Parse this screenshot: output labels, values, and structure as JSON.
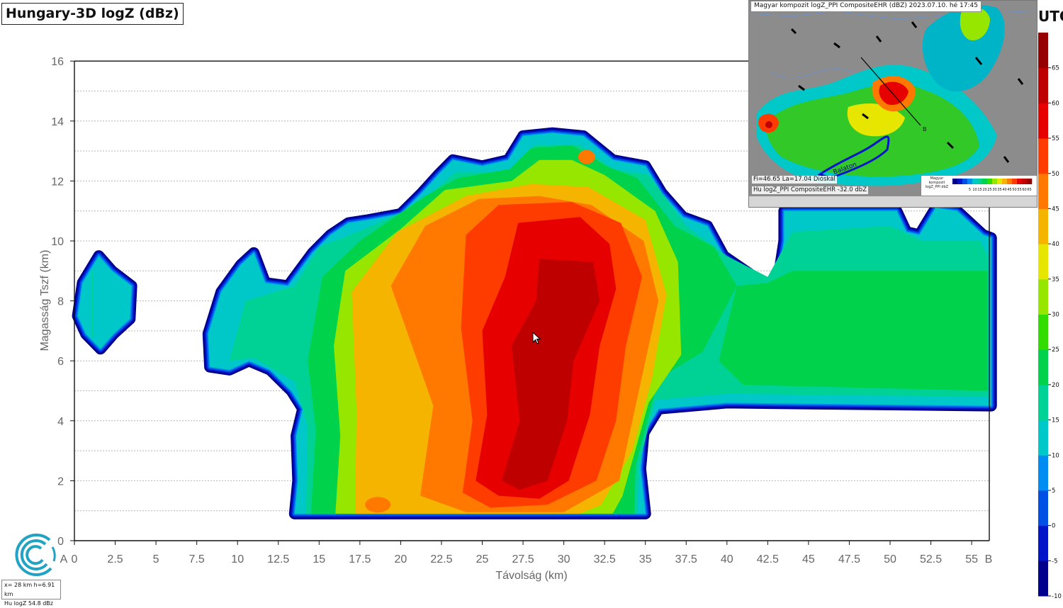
{
  "title": "Hungary-3D logZ (dBz)",
  "utc_label": "UTC",
  "chart_data": {
    "type": "heatmap",
    "xlabel": "Távolság (km)",
    "ylabel": "Magasság Tszf (km)",
    "xlim": [
      0,
      56
    ],
    "ylim": [
      0,
      16
    ],
    "x_ticks": [
      "0",
      "2.5",
      "5",
      "7.5",
      "10",
      "12.5",
      "15",
      "17.5",
      "20",
      "22.5",
      "25",
      "27.5",
      "30",
      "32.5",
      "35",
      "37.5",
      "40",
      "42.5",
      "45",
      "47.5",
      "50",
      "52.5",
      "55"
    ],
    "x_tick_values": [
      0,
      2.5,
      5,
      7.5,
      10,
      12.5,
      15,
      17.5,
      20,
      22.5,
      25,
      27.5,
      30,
      32.5,
      35,
      37.5,
      40,
      42.5,
      45,
      47.5,
      50,
      52.5,
      55
    ],
    "y_ticks": [
      "0",
      "2",
      "4",
      "6",
      "8",
      "10",
      "12",
      "14",
      "16"
    ],
    "y_tick_values": [
      0,
      2,
      4,
      6,
      8,
      10,
      12,
      14,
      16
    ],
    "endpoint_start": "A",
    "endpoint_end": "B",
    "grid": "horizontal",
    "colorscale": {
      "levels": [
        -10,
        -5,
        0,
        5,
        10,
        15,
        20,
        25,
        30,
        35,
        40,
        45,
        50,
        55,
        60,
        65,
        70
      ],
      "colors": [
        "#00008c",
        "#0014c8",
        "#0050e6",
        "#008cf0",
        "#00c8c8",
        "#00d296",
        "#00d24b",
        "#32dc00",
        "#96e600",
        "#e6e600",
        "#f5b400",
        "#ff7800",
        "#ff3c00",
        "#e60000",
        "#be0000",
        "#960000"
      ],
      "tick_labels": [
        "65",
        "60",
        "55",
        "50",
        "45",
        "40",
        "35",
        "30",
        "25",
        "20",
        "15",
        "10",
        "5",
        "0",
        "-5",
        "-10"
      ],
      "tick_values": [
        65,
        60,
        55,
        50,
        45,
        40,
        35,
        30,
        25,
        20,
        15,
        10,
        5,
        0,
        -5,
        -10
      ]
    },
    "echo_outline_km": [
      [
        13.5,
        0.9
      ],
      [
        13.7,
        2.0
      ],
      [
        13.6,
        3.5
      ],
      [
        14.0,
        4.4
      ],
      [
        13.3,
        5.0
      ],
      [
        12.0,
        5.7
      ],
      [
        10.7,
        6.0
      ],
      [
        9.5,
        5.7
      ],
      [
        8.3,
        5.8
      ],
      [
        8.2,
        6.9
      ],
      [
        9.0,
        8.3
      ],
      [
        10.2,
        9.2
      ],
      [
        11.0,
        9.6
      ],
      [
        11.7,
        8.6
      ],
      [
        13.1,
        8.5
      ],
      [
        14.6,
        9.6
      ],
      [
        15.7,
        10.2
      ],
      [
        16.8,
        10.6
      ],
      [
        18.0,
        10.7
      ],
      [
        20.0,
        10.9
      ],
      [
        21.3,
        11.6
      ],
      [
        22.3,
        12.2
      ],
      [
        23.2,
        12.7
      ],
      [
        25.0,
        12.5
      ],
      [
        26.6,
        12.7
      ],
      [
        27.5,
        13.5
      ],
      [
        29.3,
        13.6
      ],
      [
        31.2,
        13.5
      ],
      [
        33.0,
        12.7
      ],
      [
        35.0,
        12.5
      ],
      [
        36.0,
        11.6
      ],
      [
        37.3,
        10.8
      ],
      [
        38.8,
        10.5
      ],
      [
        39.8,
        9.5
      ],
      [
        41.4,
        8.9
      ],
      [
        42.3,
        8.2
      ],
      [
        43.1,
        8.6
      ],
      [
        43.5,
        10.0
      ],
      [
        43.5,
        11.0
      ],
      [
        50.4,
        11.0
      ],
      [
        51.0,
        10.3
      ],
      [
        51.8,
        10.2
      ],
      [
        52.8,
        11.1
      ],
      [
        54.1,
        11.0
      ],
      [
        55.7,
        10.2
      ],
      [
        56.2,
        10.1
      ],
      [
        56.2,
        4.5
      ],
      [
        40.0,
        4.6
      ],
      [
        35.8,
        4.4
      ],
      [
        34.9,
        3.6
      ],
      [
        34.7,
        2.4
      ],
      [
        35.0,
        0.9
      ]
    ],
    "small_cell_km": [
      [
        0.2,
        7.5
      ],
      [
        0.5,
        8.6
      ],
      [
        1.5,
        9.5
      ],
      [
        2.3,
        9.0
      ],
      [
        3.5,
        8.5
      ],
      [
        3.4,
        7.4
      ],
      [
        2.4,
        6.9
      ],
      [
        1.6,
        6.4
      ],
      [
        0.7,
        6.9
      ]
    ],
    "core_levels": [
      {
        "dbz": 20,
        "outline_km": [
          [
            14.5,
            0.9
          ],
          [
            14.8,
            3.7
          ],
          [
            14.3,
            6.0
          ],
          [
            15.2,
            8.8
          ],
          [
            17.5,
            10.0
          ],
          [
            21.5,
            11.5
          ],
          [
            23.5,
            12.1
          ],
          [
            26.7,
            12.4
          ],
          [
            28.0,
            13.1
          ],
          [
            30.5,
            13.2
          ],
          [
            32.6,
            12.5
          ],
          [
            34.5,
            12.1
          ],
          [
            36.8,
            10.5
          ],
          [
            39.2,
            9.8
          ],
          [
            40.6,
            8.5
          ],
          [
            38.5,
            6.3
          ],
          [
            35.8,
            5.4
          ],
          [
            34.4,
            2.5
          ],
          [
            34.3,
            0.9
          ]
        ]
      },
      {
        "dbz": 30,
        "outline_km": [
          [
            16.0,
            0.9
          ],
          [
            16.3,
            3.5
          ],
          [
            15.9,
            6.5
          ],
          [
            16.6,
            9.0
          ],
          [
            20.0,
            10.4
          ],
          [
            22.7,
            11.7
          ],
          [
            26.8,
            12.0
          ],
          [
            28.5,
            12.7
          ],
          [
            30.5,
            12.7
          ],
          [
            32.5,
            12.2
          ],
          [
            35.6,
            11.0
          ],
          [
            37.0,
            9.3
          ],
          [
            37.2,
            6.2
          ],
          [
            35.2,
            4.6
          ],
          [
            33.6,
            1.5
          ],
          [
            33.0,
            0.9
          ]
        ]
      },
      {
        "dbz": 40,
        "outline_km": [
          [
            17.2,
            0.9
          ],
          [
            17.3,
            4.3
          ],
          [
            17.0,
            8.3
          ],
          [
            19.8,
            10.3
          ],
          [
            24.0,
            11.5
          ],
          [
            28.0,
            11.9
          ],
          [
            31.5,
            11.8
          ],
          [
            35.0,
            10.7
          ],
          [
            36.3,
            8.2
          ],
          [
            35.4,
            5.4
          ],
          [
            34.2,
            3.0
          ],
          [
            32.3,
            1.2
          ],
          [
            31.0,
            0.9
          ]
        ]
      },
      {
        "dbz": 45,
        "outline_km": [
          [
            21.2,
            1.5
          ],
          [
            22.0,
            4.5
          ],
          [
            19.4,
            8.5
          ],
          [
            21.5,
            10.5
          ],
          [
            24.8,
            11.4
          ],
          [
            28.5,
            11.5
          ],
          [
            31.7,
            11.2
          ],
          [
            34.9,
            10.0
          ],
          [
            35.8,
            8.0
          ],
          [
            34.6,
            5.0
          ],
          [
            33.4,
            2.0
          ],
          [
            30.0,
            0.95
          ],
          [
            24.0,
            0.95
          ]
        ]
      },
      {
        "dbz": 50,
        "outline_km": [
          [
            23.8,
            1.6
          ],
          [
            24.4,
            4.0
          ],
          [
            23.7,
            7.1
          ],
          [
            24.0,
            10.2
          ],
          [
            26.0,
            11.2
          ],
          [
            30.5,
            11.3
          ],
          [
            33.5,
            10.6
          ],
          [
            34.8,
            8.8
          ],
          [
            33.8,
            6.5
          ],
          [
            33.2,
            4.0
          ],
          [
            32.0,
            2.0
          ],
          [
            29.0,
            1.2
          ],
          [
            25.5,
            1.1
          ]
        ]
      },
      {
        "dbz": 55,
        "outline_km": [
          [
            24.6,
            2.0
          ],
          [
            25.3,
            4.2
          ],
          [
            25.0,
            7.0
          ],
          [
            26.4,
            8.8
          ],
          [
            27.2,
            10.6
          ],
          [
            31.0,
            10.8
          ],
          [
            32.8,
            9.9
          ],
          [
            33.2,
            8.4
          ],
          [
            32.2,
            6.5
          ],
          [
            31.6,
            4.2
          ],
          [
            30.3,
            2.0
          ],
          [
            28.5,
            1.4
          ],
          [
            26.0,
            1.5
          ]
        ]
      },
      {
        "dbz": 60,
        "outline_km": [
          [
            26.2,
            2.0
          ],
          [
            27.3,
            4.0
          ],
          [
            26.8,
            6.5
          ],
          [
            28.3,
            8.0
          ],
          [
            28.5,
            9.4
          ],
          [
            31.8,
            9.3
          ],
          [
            32.2,
            8.0
          ],
          [
            30.6,
            6.0
          ],
          [
            30.2,
            4.0
          ],
          [
            29.0,
            2.0
          ],
          [
            27.3,
            1.7
          ]
        ]
      }
    ]
  },
  "inset": {
    "title": "Magyar kompozit logZ_PPI CompositeEHR (dBZ) 2023.07.10. hé 17:45",
    "coords": "Fi=46.65 La=17.04 Dióskál",
    "value_line": "Hu logZ_PPI CompositeEHR   -32.0 dbZ",
    "map_label": "Balaton",
    "point_b": "B",
    "legend_label": "Magyar kompozit logZ_PPI dbZ",
    "legend_ticks": [
      "5",
      "10",
      "15",
      "20",
      "25",
      "30",
      "35",
      "40",
      "45",
      "50",
      "55",
      "60",
      "65"
    ]
  },
  "readout": {
    "line1": "x=  28 km h=6.91 km",
    "line2": "Hu logZ    54.8 dBz"
  }
}
